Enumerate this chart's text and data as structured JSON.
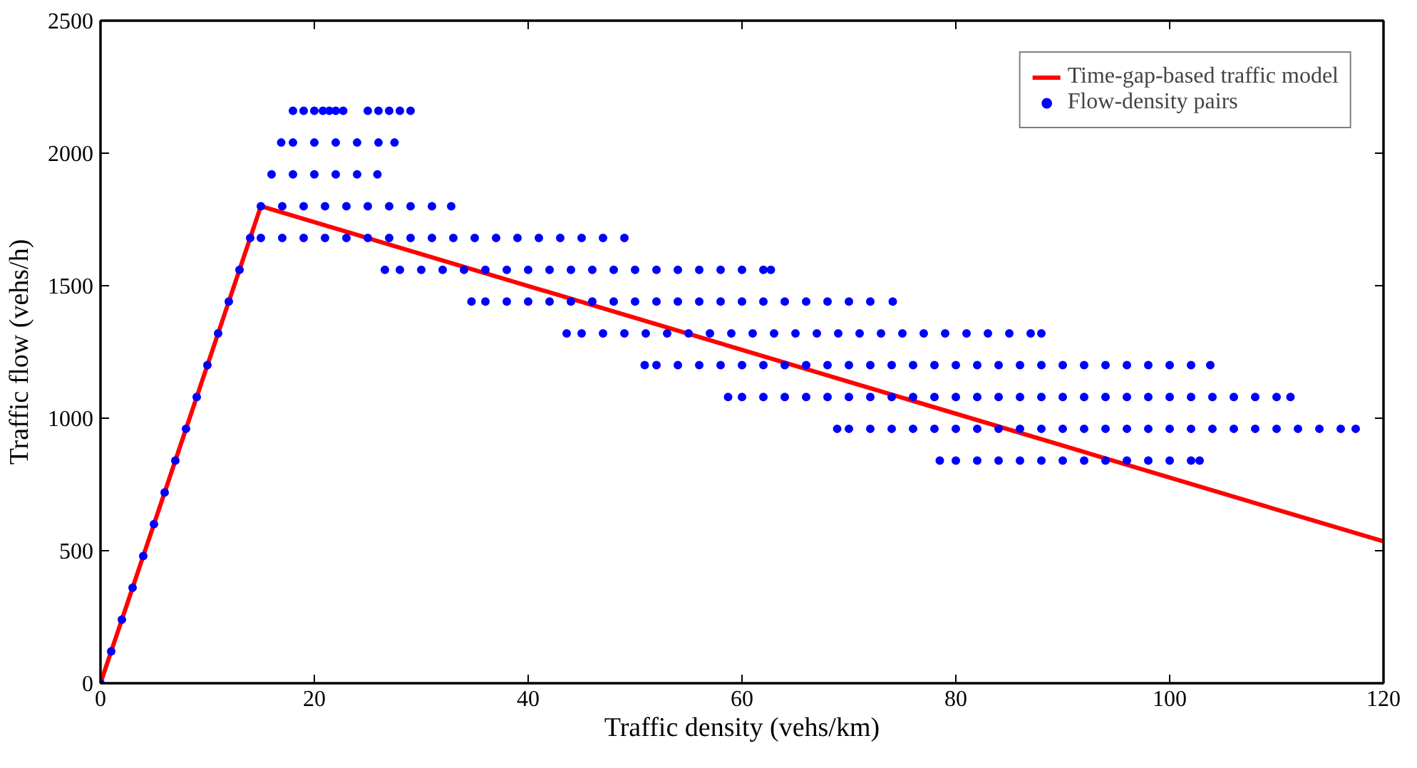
{
  "chart_data": {
    "type": "scatter",
    "xlabel": "Traffic density (vehs/km)",
    "ylabel": "Traffic flow (vehs/h)",
    "xlim": [
      0,
      120
    ],
    "xticks": [
      0,
      20,
      40,
      60,
      80,
      100,
      120
    ],
    "ylim": [
      0,
      2500
    ],
    "yticks": [
      0,
      500,
      1000,
      1500,
      2000,
      2500
    ],
    "grid": false,
    "legend": "top right",
    "marker": "circle",
    "series": [
      {
        "name": "Time-gap-based traffic model",
        "type": "line",
        "color": "#ff0000",
        "line_style": "solid",
        "marker": "none",
        "x": [
          0,
          15,
          120
        ],
        "values": [
          0,
          1800,
          535
        ]
      },
      {
        "name": "Flow-density pairs",
        "color": "#0000ff",
        "x": [
          0,
          1,
          2,
          3,
          4,
          5,
          6,
          7,
          8,
          9,
          10,
          11,
          12,
          13,
          14
        ],
        "values": [
          0,
          120,
          240,
          360,
          480,
          600,
          720,
          840,
          960,
          1080,
          1200,
          1320,
          1440,
          1560,
          1680
        ]
      },
      {
        "color": "#0000ff",
        "x": [
          15,
          17,
          19,
          21,
          23,
          25,
          27,
          29,
          31,
          32.8
        ],
        "values": [
          1800,
          1800,
          1800,
          1800,
          1800,
          1800,
          1800,
          1800,
          1800,
          1800
        ]
      },
      {
        "color": "#0000ff",
        "x": [
          15,
          17,
          19,
          21,
          23,
          25,
          27,
          29,
          31,
          33,
          35,
          37,
          39,
          41,
          43,
          45,
          47,
          49
        ],
        "values": [
          1680,
          1680,
          1680,
          1680,
          1680,
          1680,
          1680,
          1680,
          1680,
          1680,
          1680,
          1680,
          1680,
          1680,
          1680,
          1680,
          1680,
          1680
        ]
      },
      {
        "color": "#0000ff",
        "x": [
          26.6,
          28,
          30,
          32,
          34,
          36,
          38,
          40,
          42,
          44,
          46,
          48,
          50,
          52,
          54,
          56,
          58,
          60,
          62,
          62.7
        ],
        "values": [
          1560,
          1560,
          1560,
          1560,
          1560,
          1560,
          1560,
          1560,
          1560,
          1560,
          1560,
          1560,
          1560,
          1560,
          1560,
          1560,
          1560,
          1560,
          1560,
          1560
        ]
      },
      {
        "color": "#0000ff",
        "x": [
          34.7,
          36,
          38,
          40,
          42,
          44,
          46,
          48,
          50,
          52,
          54,
          56,
          58,
          60,
          62,
          64,
          66,
          68,
          70,
          72,
          74.1
        ],
        "values": [
          1440,
          1440,
          1440,
          1440,
          1440,
          1440,
          1440,
          1440,
          1440,
          1440,
          1440,
          1440,
          1440,
          1440,
          1440,
          1440,
          1440,
          1440,
          1440,
          1440,
          1440
        ]
      },
      {
        "color": "#0000ff",
        "x": [
          43.6,
          45,
          47,
          49,
          51,
          53,
          55,
          57,
          59,
          61,
          63,
          65,
          67,
          69,
          71,
          73,
          75,
          77,
          79,
          81,
          83,
          85,
          87,
          88
        ],
        "values": [
          1320,
          1320,
          1320,
          1320,
          1320,
          1320,
          1320,
          1320,
          1320,
          1320,
          1320,
          1320,
          1320,
          1320,
          1320,
          1320,
          1320,
          1320,
          1320,
          1320,
          1320,
          1320,
          1320,
          1320
        ]
      },
      {
        "color": "#0000ff",
        "x": [
          50.9,
          52,
          54,
          56,
          58,
          60,
          62,
          64,
          66,
          68,
          70,
          72,
          74,
          76,
          78,
          80,
          82,
          84,
          86,
          88,
          90,
          92,
          94,
          96,
          98,
          100,
          102,
          103.8
        ],
        "values": [
          1200,
          1200,
          1200,
          1200,
          1200,
          1200,
          1200,
          1200,
          1200,
          1200,
          1200,
          1200,
          1200,
          1200,
          1200,
          1200,
          1200,
          1200,
          1200,
          1200,
          1200,
          1200,
          1200,
          1200,
          1200,
          1200,
          1200,
          1200
        ]
      },
      {
        "color": "#0000ff",
        "x": [
          58.7,
          60,
          62,
          64,
          66,
          68,
          70,
          72,
          74,
          76,
          78,
          80,
          82,
          84,
          86,
          88,
          90,
          92,
          94,
          96,
          98,
          100,
          102,
          104,
          106,
          108,
          110,
          111.3
        ],
        "values": [
          1080,
          1080,
          1080,
          1080,
          1080,
          1080,
          1080,
          1080,
          1080,
          1080,
          1080,
          1080,
          1080,
          1080,
          1080,
          1080,
          1080,
          1080,
          1080,
          1080,
          1080,
          1080,
          1080,
          1080,
          1080,
          1080,
          1080,
          1080
        ]
      },
      {
        "color": "#0000ff",
        "x": [
          68.9,
          70,
          72,
          74,
          76,
          78,
          80,
          82,
          84,
          86,
          88,
          90,
          92,
          94,
          96,
          98,
          100,
          102,
          104,
          106,
          108,
          110,
          112,
          114,
          116,
          117.4
        ],
        "values": [
          960,
          960,
          960,
          960,
          960,
          960,
          960,
          960,
          960,
          960,
          960,
          960,
          960,
          960,
          960,
          960,
          960,
          960,
          960,
          960,
          960,
          960,
          960,
          960,
          960,
          960
        ]
      },
      {
        "color": "#0000ff",
        "x": [
          78.5,
          80,
          82,
          84,
          86,
          88,
          90,
          92,
          94,
          96,
          98,
          100,
          102,
          102.8
        ],
        "values": [
          840,
          840,
          840,
          840,
          840,
          840,
          840,
          840,
          840,
          840,
          840,
          840,
          840,
          840
        ]
      },
      {
        "color": "#0000ff",
        "x": [
          16,
          18,
          20,
          22,
          24,
          25.9
        ],
        "values": [
          1920,
          1920,
          1920,
          1920,
          1920,
          1920
        ]
      },
      {
        "color": "#0000ff",
        "x": [
          16.9,
          18,
          20,
          22,
          24,
          26,
          27.5
        ],
        "values": [
          2040,
          2040,
          2040,
          2040,
          2040,
          2040,
          2040
        ]
      },
      {
        "color": "#0000ff",
        "x": [
          18,
          19,
          20,
          20.8,
          21.4,
          22,
          22.7,
          25,
          26,
          27,
          28,
          29
        ],
        "values": [
          2160,
          2160,
          2160,
          2160,
          2160,
          2160,
          2160,
          2160,
          2160,
          2160,
          2160,
          2160
        ]
      }
    ]
  }
}
